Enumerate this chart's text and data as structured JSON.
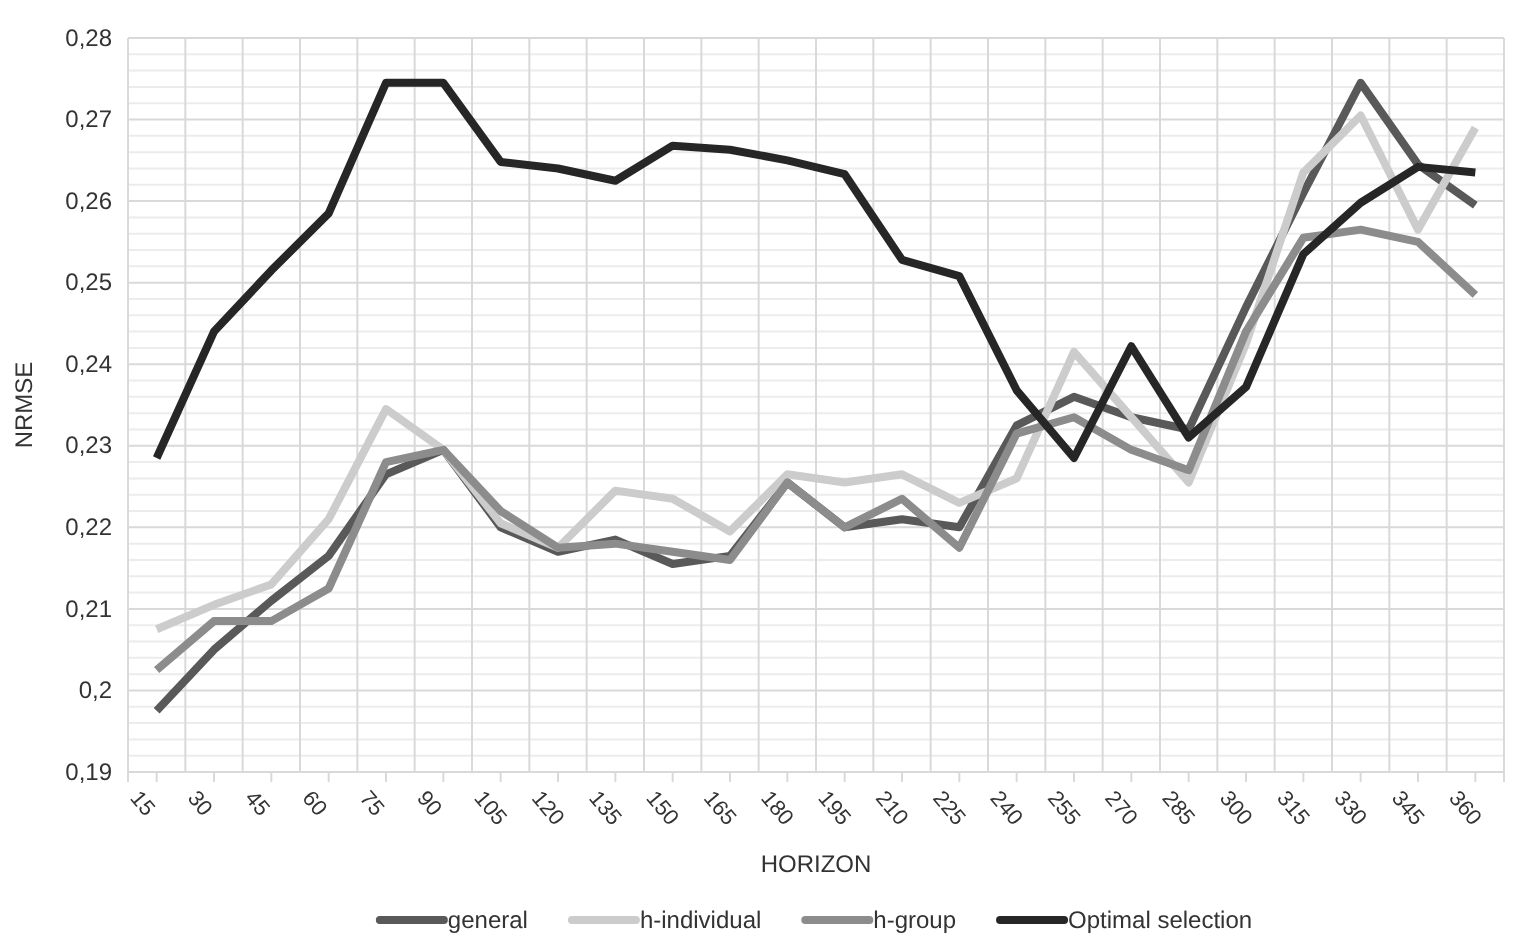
{
  "chart_data": {
    "type": "line",
    "xlabel": "HORIZON",
    "ylabel": "NRMSE",
    "categories": [
      "15",
      "30",
      "45",
      "60",
      "75",
      "90",
      "105",
      "120",
      "135",
      "150",
      "165",
      "180",
      "195",
      "210",
      "225",
      "240",
      "255",
      "270",
      "285",
      "300",
      "315",
      "330",
      "345",
      "360"
    ],
    "series": [
      {
        "name": "general",
        "color": "#595959",
        "values": [
          0.1975,
          0.205,
          0.211,
          0.2165,
          0.2265,
          0.2295,
          0.22,
          0.217,
          0.2185,
          0.2155,
          0.2165,
          0.2255,
          0.22,
          0.221,
          0.22,
          0.2325,
          0.236,
          0.2335,
          0.232,
          0.247,
          0.261,
          0.2745,
          0.2645,
          0.2595
        ]
      },
      {
        "name": "h-individual",
        "color": "#cccccc",
        "values": [
          0.2075,
          0.2105,
          0.213,
          0.221,
          0.2345,
          0.2295,
          0.2205,
          0.2175,
          0.2245,
          0.2235,
          0.2195,
          0.2265,
          0.2255,
          0.2265,
          0.223,
          0.226,
          0.2415,
          0.2335,
          0.2255,
          0.2425,
          0.2635,
          0.2705,
          0.2565,
          0.269
        ]
      },
      {
        "name": "h-group",
        "color": "#8c8c8c",
        "values": [
          0.2025,
          0.2085,
          0.2085,
          0.2125,
          0.228,
          0.2295,
          0.222,
          0.2175,
          0.218,
          0.217,
          0.216,
          0.2255,
          0.22,
          0.2235,
          0.2175,
          0.2315,
          0.2335,
          0.2295,
          0.227,
          0.244,
          0.2555,
          0.2565,
          0.255,
          0.2485
        ]
      },
      {
        "name": "Optimal selection",
        "color": "#262626",
        "values": [
          0.2285,
          0.244,
          0.2515,
          0.2585,
          0.2745,
          0.2745,
          0.2648,
          0.264,
          0.2625,
          0.2668,
          0.2663,
          0.265,
          0.2633,
          0.2528,
          0.2508,
          0.2368,
          0.2285,
          0.2422,
          0.231,
          0.2372,
          0.2535,
          0.2598,
          0.2642,
          0.2635
        ]
      }
    ],
    "ylim": [
      0.19,
      0.28
    ],
    "yticks": [
      {
        "value": 0.19,
        "label": "0,19"
      },
      {
        "value": 0.2,
        "label": "0,2"
      },
      {
        "value": 0.21,
        "label": "0,21"
      },
      {
        "value": 0.22,
        "label": "0,22"
      },
      {
        "value": 0.23,
        "label": "0,23"
      },
      {
        "value": 0.24,
        "label": "0,24"
      },
      {
        "value": 0.25,
        "label": "0,25"
      },
      {
        "value": 0.26,
        "label": "0,26"
      },
      {
        "value": 0.27,
        "label": "0,27"
      },
      {
        "value": 0.28,
        "label": "0,28"
      }
    ],
    "grid": true,
    "legend": "bottom",
    "marker": "none",
    "line_style": "solid"
  }
}
